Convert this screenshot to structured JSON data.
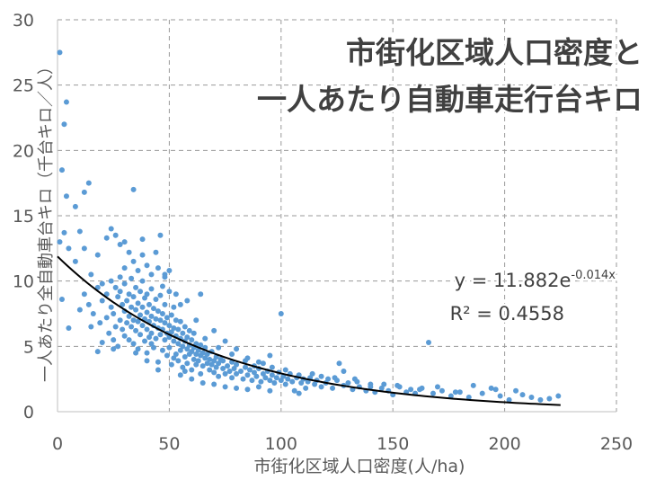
{
  "chart_data": {
    "type": "scatter",
    "title_line1": "市街化区域人口密度と",
    "title_line2": "一人あたり自動車走行台キロ",
    "xlabel": "市街化区域人口密度(人/ha)",
    "ylabel": "一人あたり全自動車台キロ（千台キロ／人）",
    "xlim": [
      0,
      250
    ],
    "ylim": [
      0,
      30
    ],
    "xticks": [
      "0",
      "50",
      "100",
      "150",
      "200",
      "250"
    ],
    "yticks": [
      "0",
      "5",
      "10",
      "15",
      "20",
      "25",
      "30"
    ],
    "grid": true,
    "equation_prefix": "y = 11.882e",
    "equation_exponent": "-0.014x",
    "r_squared": "R² = 0.4558",
    "trendline": {
      "a": 11.882,
      "b": -0.014,
      "x_start": 0,
      "x_end": 225
    },
    "point_color": "#5b9bd5",
    "trend_color": "#000000",
    "points": [
      [
        1,
        27.5
      ],
      [
        2,
        18.5
      ],
      [
        3,
        22
      ],
      [
        4,
        23.7
      ],
      [
        4,
        16.5
      ],
      [
        8,
        15.7
      ],
      [
        12,
        16.8
      ],
      [
        14,
        17.5
      ],
      [
        34,
        17
      ],
      [
        1,
        13
      ],
      [
        3,
        13.7
      ],
      [
        5,
        12.5
      ],
      [
        2,
        8.6
      ],
      [
        5,
        6.4
      ],
      [
        8,
        11.5
      ],
      [
        10,
        13.8
      ],
      [
        12,
        12.5
      ],
      [
        15,
        10.5
      ],
      [
        18,
        12
      ],
      [
        20,
        9.8
      ],
      [
        22,
        13.3
      ],
      [
        24,
        14
      ],
      [
        26,
        13.5
      ],
      [
        28,
        12.8
      ],
      [
        30,
        11
      ],
      [
        32,
        12.2
      ],
      [
        34,
        11.5
      ],
      [
        36,
        10.8
      ],
      [
        38,
        12
      ],
      [
        40,
        11.2
      ],
      [
        42,
        10.5
      ],
      [
        44,
        12.2
      ],
      [
        46,
        13.5
      ],
      [
        48,
        10.3
      ],
      [
        50,
        10.8
      ],
      [
        50,
        9.2
      ],
      [
        12,
        9
      ],
      [
        14,
        8.2
      ],
      [
        16,
        7.5
      ],
      [
        18,
        9.5
      ],
      [
        19,
        6.8
      ],
      [
        20,
        8.5
      ],
      [
        20,
        5.3
      ],
      [
        22,
        7.2
      ],
      [
        22,
        9
      ],
      [
        23,
        6
      ],
      [
        24,
        8
      ],
      [
        24,
        10
      ],
      [
        25,
        5.5
      ],
      [
        25,
        7.5
      ],
      [
        26,
        6.5
      ],
      [
        26,
        9.5
      ],
      [
        27,
        8.8
      ],
      [
        27,
        5
      ],
      [
        28,
        7
      ],
      [
        28,
        9.2
      ],
      [
        29,
        6.3
      ],
      [
        29,
        8.2
      ],
      [
        30,
        7.7
      ],
      [
        30,
        5.8
      ],
      [
        30,
        9.8
      ],
      [
        31,
        6.8
      ],
      [
        31,
        8.5
      ],
      [
        32,
        7.3
      ],
      [
        32,
        9
      ],
      [
        32,
        5.5
      ],
      [
        33,
        6.5
      ],
      [
        33,
        8
      ],
      [
        33,
        10.2
      ],
      [
        34,
        7
      ],
      [
        34,
        8.8
      ],
      [
        34,
        5.2
      ],
      [
        35,
        6.2
      ],
      [
        35,
        7.8
      ],
      [
        35,
        9.5
      ],
      [
        36,
        6.9
      ],
      [
        36,
        8.3
      ],
      [
        36,
        4.8
      ],
      [
        37,
        7.4
      ],
      [
        37,
        9.2
      ],
      [
        37,
        5.9
      ],
      [
        38,
        6.6
      ],
      [
        38,
        8
      ],
      [
        38,
        10
      ],
      [
        39,
        7.1
      ],
      [
        39,
        5.4
      ],
      [
        39,
        8.7
      ],
      [
        40,
        6.3
      ],
      [
        40,
        7.6
      ],
      [
        40,
        9
      ],
      [
        40,
        4.5
      ],
      [
        41,
        6.9
      ],
      [
        41,
        8.2
      ],
      [
        41,
        5.7
      ],
      [
        42,
        7.3
      ],
      [
        42,
        6
      ],
      [
        42,
        9.4
      ],
      [
        43,
        6.6
      ],
      [
        43,
        7.9
      ],
      [
        43,
        4.9
      ],
      [
        44,
        7.1
      ],
      [
        44,
        5.6
      ],
      [
        44,
        8.6
      ],
      [
        45,
        6.4
      ],
      [
        45,
        7.7
      ],
      [
        45,
        3.8
      ],
      [
        46,
        5.9
      ],
      [
        46,
        7
      ],
      [
        46,
        8.9
      ],
      [
        47,
        6.3
      ],
      [
        47,
        4.7
      ],
      [
        47,
        7.5
      ],
      [
        48,
        5.5
      ],
      [
        48,
        6.8
      ],
      [
        48,
        8.2
      ],
      [
        49,
        6
      ],
      [
        49,
        4.3
      ],
      [
        49,
        7.2
      ],
      [
        50,
        5.7
      ],
      [
        50,
        6.6
      ],
      [
        50,
        4.9
      ],
      [
        51,
        6.1
      ],
      [
        51,
        7.4
      ],
      [
        51,
        3.6
      ],
      [
        52,
        5.4
      ],
      [
        52,
        6.4
      ],
      [
        52,
        8
      ],
      [
        53,
        5.8
      ],
      [
        53,
        4.4
      ],
      [
        53,
        7
      ],
      [
        54,
        5.2
      ],
      [
        54,
        6.3
      ],
      [
        54,
        3.9
      ],
      [
        55,
        5.6
      ],
      [
        55,
        4.7
      ],
      [
        55,
        6.9
      ],
      [
        56,
        5
      ],
      [
        56,
        6
      ],
      [
        56,
        3.4
      ],
      [
        57,
        5.4
      ],
      [
        57,
        4.2
      ],
      [
        57,
        6.5
      ],
      [
        58,
        4.8
      ],
      [
        58,
        5.7
      ],
      [
        58,
        3.7
      ],
      [
        59,
        5.1
      ],
      [
        59,
        4.4
      ],
      [
        59,
        6.2
      ],
      [
        60,
        4.6
      ],
      [
        60,
        5.5
      ],
      [
        60,
        3.2
      ],
      [
        61,
        4.9
      ],
      [
        61,
        4
      ],
      [
        61,
        6
      ],
      [
        62,
        4.4
      ],
      [
        62,
        5.2
      ],
      [
        62,
        3.6
      ],
      [
        63,
        4.7
      ],
      [
        63,
        3.9
      ],
      [
        64,
        4.3
      ],
      [
        64,
        5.1
      ],
      [
        64,
        2.9
      ],
      [
        65,
        4.5
      ],
      [
        65,
        3.5
      ],
      [
        66,
        4.1
      ],
      [
        66,
        4.9
      ],
      [
        67,
        3.7
      ],
      [
        67,
        4.4
      ],
      [
        68,
        4
      ],
      [
        68,
        3.2
      ],
      [
        69,
        4.6
      ],
      [
        69,
        3.6
      ],
      [
        70,
        3.9
      ],
      [
        70,
        3
      ],
      [
        71,
        4.2
      ],
      [
        71,
        3.4
      ],
      [
        72,
        3.7
      ],
      [
        72,
        2.7
      ],
      [
        73,
        4
      ],
      [
        74,
        3.3
      ],
      [
        74,
        3.9
      ],
      [
        75,
        2.9
      ],
      [
        76,
        3.5
      ],
      [
        77,
        3.1
      ],
      [
        78,
        3.8
      ],
      [
        78,
        2.6
      ],
      [
        79,
        3.3
      ],
      [
        80,
        2.9
      ],
      [
        80,
        3.6
      ],
      [
        82,
        3.1
      ],
      [
        83,
        2.5
      ],
      [
        84,
        3.4
      ],
      [
        85,
        2.8
      ],
      [
        86,
        3.2
      ],
      [
        87,
        2.4
      ],
      [
        88,
        3
      ],
      [
        89,
        2.7
      ],
      [
        90,
        3.3
      ],
      [
        91,
        2.3
      ],
      [
        92,
        2.9
      ],
      [
        93,
        2.6
      ],
      [
        94,
        3.1
      ],
      [
        95,
        2.4
      ],
      [
        96,
        2.8
      ],
      [
        97,
        2.2
      ],
      [
        98,
        2.6
      ],
      [
        99,
        3
      ],
      [
        100,
        2.4
      ],
      [
        101,
        2.7
      ],
      [
        102,
        2.1
      ],
      [
        103,
        2.5
      ],
      [
        104,
        2.9
      ],
      [
        105,
        2.3
      ],
      [
        106,
        1.6
      ],
      [
        107,
        2.6
      ],
      [
        108,
        1.4
      ],
      [
        109,
        2.2
      ],
      [
        110,
        2.5
      ],
      [
        111,
        1.8
      ],
      [
        112,
        2.3
      ],
      [
        113,
        2.6
      ],
      [
        115,
        2.1
      ],
      [
        116,
        2.4
      ],
      [
        118,
        1.9
      ],
      [
        120,
        2.2
      ],
      [
        121,
        2.5
      ],
      [
        123,
        1.8
      ],
      [
        125,
        2.4
      ],
      [
        126,
        3.7
      ],
      [
        128,
        2
      ],
      [
        130,
        2.2
      ],
      [
        132,
        1.7
      ],
      [
        133,
        2.5
      ],
      [
        135,
        1.9
      ],
      [
        138,
        1.6
      ],
      [
        140,
        2.1
      ],
      [
        142,
        1.5
      ],
      [
        145,
        1.8
      ],
      [
        148,
        1.6
      ],
      [
        150,
        1.3
      ],
      [
        152,
        2
      ],
      [
        156,
        1.5
      ],
      [
        158,
        1.7
      ],
      [
        160,
        1.4
      ],
      [
        163,
        1.8
      ],
      [
        166,
        5.3
      ],
      [
        168,
        1.4
      ],
      [
        172,
        1.6
      ],
      [
        176,
        1.2
      ],
      [
        180,
        1.5
      ],
      [
        184,
        1.1
      ],
      [
        186,
        2
      ],
      [
        190,
        1.4
      ],
      [
        194,
        1.8
      ],
      [
        198,
        1.2
      ],
      [
        202,
        0.9
      ],
      [
        205,
        1.6
      ],
      [
        208,
        1.3
      ],
      [
        212,
        1.1
      ],
      [
        216,
        0.9
      ],
      [
        220,
        1
      ],
      [
        224,
        1.2
      ],
      [
        100,
        7.5
      ],
      [
        64,
        9
      ],
      [
        58,
        8.5
      ],
      [
        70,
        6.2
      ],
      [
        75,
        5.4
      ],
      [
        80,
        4.8
      ],
      [
        85,
        4.1
      ],
      [
        90,
        3.8
      ],
      [
        95,
        4.3
      ],
      [
        55,
        8.2
      ],
      [
        62,
        7
      ],
      [
        15,
        6.5
      ],
      [
        18,
        4.6
      ],
      [
        10,
        7.8
      ],
      [
        45,
        11
      ],
      [
        38,
        13.2
      ],
      [
        30,
        13
      ],
      [
        48,
        10.5
      ],
      [
        53,
        9
      ],
      [
        35,
        4.5
      ],
      [
        40,
        3.9
      ],
      [
        45,
        3.2
      ],
      [
        25,
        4.8
      ],
      [
        28,
        10.3
      ],
      [
        55,
        2.8
      ],
      [
        60,
        2.5
      ],
      [
        65,
        2.2
      ],
      [
        70,
        2.1
      ],
      [
        75,
        1.9
      ],
      [
        80,
        1.8
      ],
      [
        85,
        1.7
      ],
      [
        90,
        1.9
      ],
      [
        95,
        1.6
      ],
      [
        42,
        5.2
      ],
      [
        47,
        9.6
      ],
      [
        52,
        4.1
      ],
      [
        57,
        3.1
      ],
      [
        66,
        5.6
      ],
      [
        72,
        4.9
      ],
      [
        78,
        4.4
      ],
      [
        84,
        3.9
      ],
      [
        88,
        3.5
      ],
      [
        92,
        3.7
      ],
      [
        96,
        3.4
      ],
      [
        102,
        3.2
      ],
      [
        108,
        2.8
      ],
      [
        114,
        2.9
      ],
      [
        118,
        2.7
      ],
      [
        124,
        2.6
      ],
      [
        128,
        3.1
      ],
      [
        134,
        2.3
      ],
      [
        140,
        1.9
      ],
      [
        146,
        2.1
      ],
      [
        153,
        1.9
      ],
      [
        162,
        1.7
      ],
      [
        170,
        1.9
      ],
      [
        178,
        1.5
      ],
      [
        196,
        1.7
      ]
    ]
  }
}
